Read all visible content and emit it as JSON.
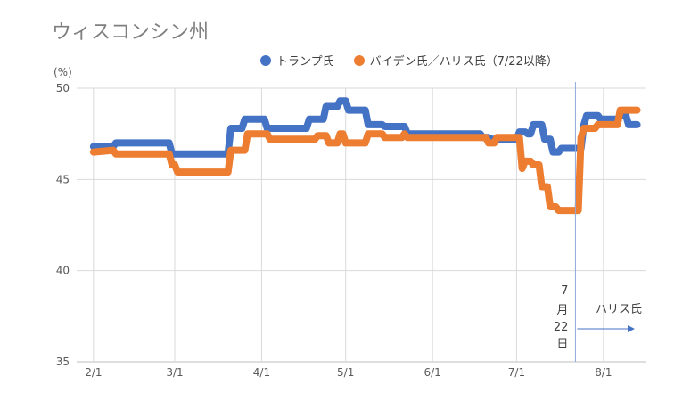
{
  "chart_data": {
    "type": "line",
    "title": "ウィスコンシン州",
    "unit_label": "(%)",
    "ylim": [
      35,
      50
    ],
    "yticks": [
      35,
      40,
      45,
      50
    ],
    "x_tick_labels": [
      "2/1",
      "3/1",
      "4/1",
      "5/1",
      "6/1",
      "7/1",
      "8/1"
    ],
    "legend_position": "top",
    "grid": true,
    "series": [
      {
        "name": "トランプ氏",
        "color": "#4472c4",
        "points": [
          [
            "2/1",
            46.8
          ],
          [
            "2/8",
            46.8
          ],
          [
            "2/9",
            47.0
          ],
          [
            "2/28",
            47.0
          ],
          [
            "2/29",
            46.4
          ],
          [
            "3/20",
            46.4
          ],
          [
            "3/21",
            47.8
          ],
          [
            "3/25",
            47.8
          ],
          [
            "3/26",
            48.3
          ],
          [
            "4/2",
            48.3
          ],
          [
            "4/3",
            47.8
          ],
          [
            "4/17",
            47.8
          ],
          [
            "4/18",
            48.3
          ],
          [
            "4/23",
            48.3
          ],
          [
            "4/24",
            49.0
          ],
          [
            "4/28",
            49.0
          ],
          [
            "4/29",
            49.3
          ],
          [
            "5/1",
            49.3
          ],
          [
            "5/2",
            48.8
          ],
          [
            "5/8",
            48.8
          ],
          [
            "5/9",
            48.0
          ],
          [
            "5/14",
            48.0
          ],
          [
            "5/15",
            47.9
          ],
          [
            "5/22",
            47.9
          ],
          [
            "5/23",
            47.5
          ],
          [
            "6/18",
            47.5
          ],
          [
            "6/19",
            47.3
          ],
          [
            "6/21",
            47.3
          ],
          [
            "6/22",
            47.2
          ],
          [
            "7/1",
            47.2
          ],
          [
            "7/2",
            47.6
          ],
          [
            "7/4",
            47.6
          ],
          [
            "7/5",
            47.5
          ],
          [
            "7/6",
            47.5
          ],
          [
            "7/7",
            48.0
          ],
          [
            "7/10",
            48.0
          ],
          [
            "7/11",
            47.2
          ],
          [
            "7/13",
            47.2
          ],
          [
            "7/14",
            46.5
          ],
          [
            "7/16",
            46.5
          ],
          [
            "7/17",
            46.7
          ],
          [
            "7/24",
            46.7
          ],
          [
            "7/25",
            48.0
          ],
          [
            "7/26",
            48.5
          ],
          [
            "7/30",
            48.5
          ],
          [
            "7/31",
            48.3
          ],
          [
            "8/6",
            48.3
          ],
          [
            "8/7",
            48.5
          ],
          [
            "8/9",
            48.5
          ],
          [
            "8/10",
            48.0
          ],
          [
            "8/13",
            48.0
          ]
        ]
      },
      {
        "name": "バイデン氏／ハリス氏（7/22以降）",
        "color": "#ed7d31",
        "points": [
          [
            "2/1",
            46.5
          ],
          [
            "2/8",
            46.6
          ],
          [
            "2/9",
            46.4
          ],
          [
            "2/28",
            46.4
          ],
          [
            "2/29",
            45.8
          ],
          [
            "3/1",
            45.8
          ],
          [
            "3/2",
            45.4
          ],
          [
            "3/20",
            45.4
          ],
          [
            "3/21",
            46.6
          ],
          [
            "3/26",
            46.6
          ],
          [
            "3/27",
            47.5
          ],
          [
            "4/3",
            47.5
          ],
          [
            "4/4",
            47.2
          ],
          [
            "4/20",
            47.2
          ],
          [
            "4/21",
            47.4
          ],
          [
            "4/24",
            47.4
          ],
          [
            "4/25",
            47.0
          ],
          [
            "4/28",
            47.0
          ],
          [
            "4/29",
            47.5
          ],
          [
            "4/30",
            47.5
          ],
          [
            "5/1",
            47.0
          ],
          [
            "5/8",
            47.0
          ],
          [
            "5/9",
            47.5
          ],
          [
            "5/14",
            47.5
          ],
          [
            "5/15",
            47.3
          ],
          [
            "5/21",
            47.3
          ],
          [
            "5/22",
            47.5
          ],
          [
            "5/23",
            47.3
          ],
          [
            "6/20",
            47.3
          ],
          [
            "6/21",
            47.0
          ],
          [
            "6/23",
            47.0
          ],
          [
            "6/24",
            47.3
          ],
          [
            "7/2",
            47.3
          ],
          [
            "7/3",
            45.6
          ],
          [
            "7/4",
            46.0
          ],
          [
            "7/6",
            46.0
          ],
          [
            "7/7",
            45.8
          ],
          [
            "7/9",
            45.8
          ],
          [
            "7/10",
            44.6
          ],
          [
            "7/12",
            44.6
          ],
          [
            "7/13",
            43.5
          ],
          [
            "7/15",
            43.5
          ],
          [
            "7/16",
            43.3
          ],
          [
            "7/23",
            43.3
          ],
          [
            "7/24",
            47.3
          ],
          [
            "7/25",
            47.8
          ],
          [
            "7/29",
            47.8
          ],
          [
            "7/30",
            48.0
          ],
          [
            "8/6",
            48.0
          ],
          [
            "8/7",
            48.8
          ],
          [
            "8/13",
            48.8
          ]
        ]
      }
    ],
    "annotation": {
      "date": "7/22",
      "text_lines": [
        "7",
        "月",
        "22",
        "日"
      ],
      "arrow_label": "ハリス氏"
    }
  }
}
